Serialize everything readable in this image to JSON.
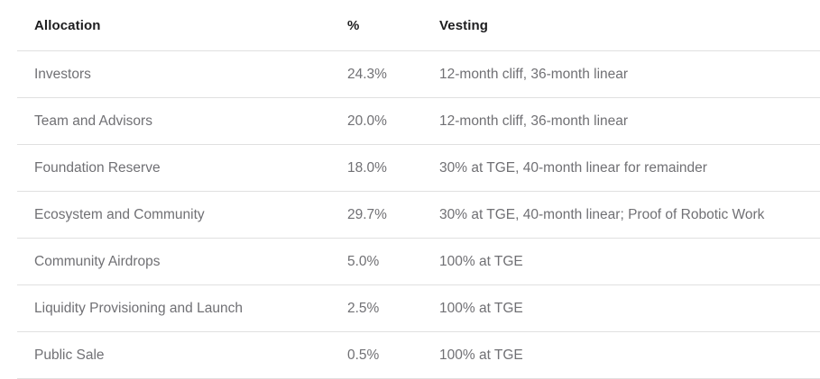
{
  "table": {
    "columns": [
      "Allocation",
      "%",
      "Vesting"
    ],
    "rows": [
      {
        "allocation": "Investors",
        "percent": "24.3%",
        "vesting": "12-month cliff, 36-month linear"
      },
      {
        "allocation": "Team and Advisors",
        "percent": "20.0%",
        "vesting": "12-month cliff, 36-month linear"
      },
      {
        "allocation": "Foundation Reserve",
        "percent": "18.0%",
        "vesting": "30% at TGE, 40-month linear for remainder"
      },
      {
        "allocation": "Ecosystem and Community",
        "percent": "29.7%",
        "vesting": "30% at TGE, 40-month linear; Proof of Robotic Work"
      },
      {
        "allocation": "Community Airdrops",
        "percent": "5.0%",
        "vesting": "100% at TGE"
      },
      {
        "allocation": "Liquidity Provisioning and Launch",
        "percent": "2.5%",
        "vesting": "100% at TGE"
      },
      {
        "allocation": "Public Sale",
        "percent": "0.5%",
        "vesting": "100% at TGE"
      }
    ],
    "colors": {
      "background": "#ffffff",
      "header_text": "#1d1d1f",
      "body_text": "#707074",
      "divider": "#e0e0e0"
    }
  }
}
